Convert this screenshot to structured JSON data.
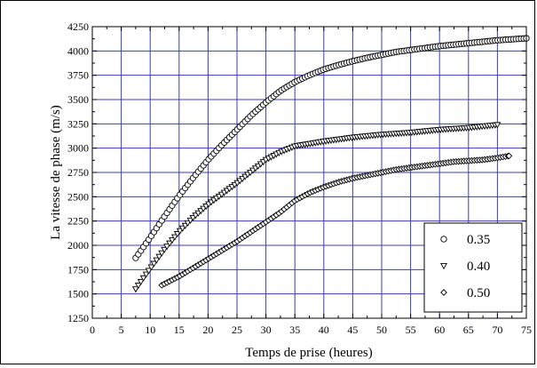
{
  "chart_data": {
    "type": "scatter",
    "title": "",
    "xlabel": "Temps de prise (heures)",
    "ylabel": "La vitesse de phase (m/s)",
    "xlim": [
      0,
      75
    ],
    "ylim": [
      1250,
      4250
    ],
    "x_ticks": [
      0,
      5,
      10,
      15,
      20,
      25,
      30,
      35,
      40,
      45,
      50,
      55,
      60,
      65,
      70,
      75
    ],
    "y_ticks": [
      1250,
      1500,
      1750,
      2000,
      2250,
      2500,
      2750,
      3000,
      3250,
      3500,
      3750,
      4000,
      4250
    ],
    "grid": true,
    "grid_color": "#3c3cb4",
    "legend_position": "bottom-right",
    "series": [
      {
        "name": "0.35",
        "marker": "circle",
        "x": [
          7.5,
          10,
          12.5,
          15,
          17.5,
          20,
          22.5,
          25,
          27.5,
          30,
          32.5,
          35,
          37.5,
          40,
          42.5,
          45,
          47.5,
          50,
          52.5,
          55,
          57.5,
          60,
          62.5,
          65,
          67.5,
          70,
          72.5,
          75
        ],
        "y": [
          1870,
          2080,
          2300,
          2510,
          2700,
          2880,
          3040,
          3190,
          3340,
          3470,
          3590,
          3680,
          3750,
          3810,
          3855,
          3895,
          3930,
          3960,
          3990,
          4010,
          4030,
          4050,
          4065,
          4080,
          4095,
          4110,
          4120,
          4130
        ]
      },
      {
        "name": "0.40",
        "marker": "triangle-down",
        "x": [
          7.5,
          10,
          12.5,
          15,
          17.5,
          20,
          22.5,
          25,
          27.5,
          30,
          32.5,
          35,
          37.5,
          40,
          42.5,
          45,
          47.5,
          50,
          52.5,
          55,
          57.5,
          60,
          62.5,
          65,
          67.5,
          70
        ],
        "y": [
          1550,
          1760,
          1960,
          2140,
          2290,
          2420,
          2530,
          2640,
          2760,
          2880,
          2960,
          3020,
          3045,
          3070,
          3090,
          3110,
          3125,
          3140,
          3150,
          3160,
          3175,
          3190,
          3200,
          3210,
          3225,
          3240
        ]
      },
      {
        "name": "0.50",
        "marker": "diamond",
        "x": [
          12,
          15,
          17.5,
          20,
          22.5,
          25,
          27.5,
          30,
          32.5,
          35,
          37.5,
          40,
          42.5,
          45,
          47.5,
          50,
          52.5,
          55,
          57.5,
          60,
          62.5,
          65,
          67.5,
          70,
          72
        ],
        "y": [
          1590,
          1680,
          1770,
          1860,
          1950,
          2040,
          2140,
          2240,
          2340,
          2460,
          2540,
          2600,
          2650,
          2690,
          2720,
          2750,
          2780,
          2800,
          2820,
          2840,
          2860,
          2870,
          2880,
          2900,
          2920
        ]
      }
    ]
  }
}
